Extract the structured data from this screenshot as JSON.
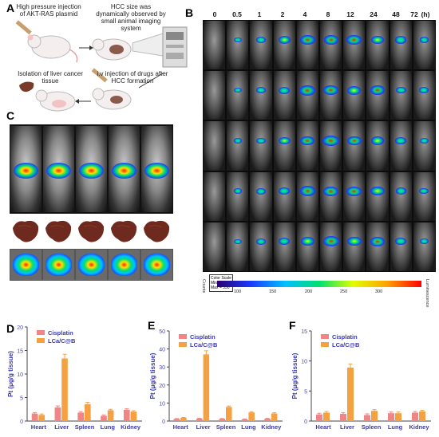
{
  "panels": {
    "A": "A",
    "B": "B",
    "C": "C",
    "D": "D",
    "E": "E",
    "F": "F"
  },
  "panel_a": {
    "step1": "High pressure injection of AKT-RAS plasmid",
    "step2": "HCC size was dynamically observed by small animal imaging system",
    "step3": "i.v injection of drugs after HCC formation",
    "step4": "Isolation of liver cancer tissue"
  },
  "panel_b": {
    "time_points": [
      "0",
      "0.5",
      "1",
      "2",
      "4",
      "8",
      "12",
      "24",
      "48",
      "72"
    ],
    "unit": "(h)",
    "colorbar": {
      "left_label": "Counts",
      "right_label": "Luminescence",
      "ticks": [
        "100",
        "150",
        "200",
        "250",
        "300"
      ],
      "legend_lines": [
        "Color Scale",
        "Min = 94",
        "Max = 350"
      ]
    }
  },
  "colors": {
    "cisplatin": "#f08585",
    "lca": "#f5a142"
  },
  "chart_data": [
    {
      "type": "bar",
      "panel": "D",
      "categories": [
        "Heart",
        "Liver",
        "Spleen",
        "Lung",
        "Kidney"
      ],
      "series": [
        {
          "name": "Cisplatin",
          "values": [
            1.6,
            2.9,
            1.8,
            1.1,
            2.4
          ],
          "errors": [
            0.2,
            0.3,
            0.2,
            0.2,
            0.2
          ]
        },
        {
          "name": "LCa/C@B",
          "values": [
            1.3,
            13.3,
            3.6,
            2.3,
            2.0
          ],
          "errors": [
            0.2,
            0.9,
            0.4,
            0.2,
            0.2
          ]
        }
      ],
      "ylabel": "Pt (μg/g tissue)",
      "ylim": [
        0,
        20
      ],
      "yticks": [
        0,
        5,
        10,
        15,
        20
      ]
    },
    {
      "type": "bar",
      "panel": "E",
      "categories": [
        "Heart",
        "Liver",
        "Spleen",
        "Lung",
        "Kidney"
      ],
      "series": [
        {
          "name": "Cisplatin",
          "values": [
            1.2,
            1.4,
            1.2,
            1.0,
            1.3
          ],
          "errors": [
            0.2,
            0.2,
            0.2,
            0.2,
            0.2
          ]
        },
        {
          "name": "LCa/C@B",
          "values": [
            1.8,
            37,
            7.8,
            4.8,
            4.2
          ],
          "errors": [
            0.2,
            2.0,
            0.5,
            0.4,
            0.4
          ]
        }
      ],
      "ylabel": "Pt (μg/g tissue)",
      "ylim": [
        0,
        50
      ],
      "yticks": [
        0,
        10,
        20,
        30,
        40,
        50
      ]
    },
    {
      "type": "bar",
      "panel": "F",
      "categories": [
        "Heart",
        "Liver",
        "Spleen",
        "Lung",
        "Kidney"
      ],
      "series": [
        {
          "name": "Cisplatin",
          "values": [
            1.1,
            1.2,
            1.0,
            1.3,
            1.4
          ],
          "errors": [
            0.2,
            0.2,
            0.2,
            0.2,
            0.2
          ]
        },
        {
          "name": "LCa/C@B",
          "values": [
            1.4,
            8.9,
            1.7,
            1.3,
            1.6
          ],
          "errors": [
            0.2,
            0.6,
            0.2,
            0.2,
            0.2
          ]
        }
      ],
      "ylabel": "Pt (μg/g tissue)",
      "ylim": [
        0,
        15
      ],
      "yticks": [
        0,
        5,
        10,
        15
      ]
    }
  ]
}
